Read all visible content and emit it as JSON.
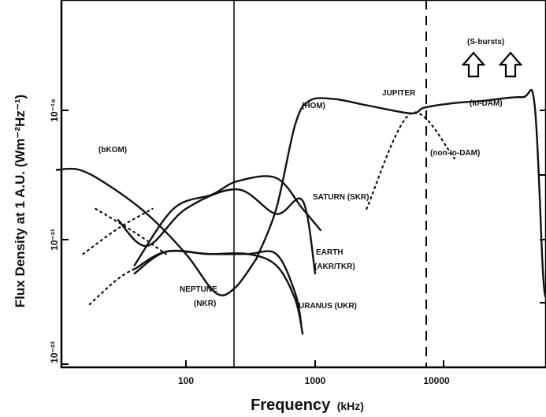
{
  "chart_data": {
    "type": "line",
    "xlabel": "Frequency (kHz)",
    "ylabel": "Flux Density at 1 A.U. (Wm⁻²Hz⁻¹)",
    "x_scale": "log",
    "y_scale": "log",
    "xlim": [
      10,
      70000
    ],
    "ylim": [
      1e-23,
      1e-18
    ],
    "x_ticks": [
      {
        "value": 100,
        "label": "100"
      },
      {
        "value": 1000,
        "label": "1000"
      },
      {
        "value": 10000,
        "label": "10000"
      }
    ],
    "y_ticks": [
      {
        "value": 1e-19,
        "label": "10⁻¹⁹"
      },
      {
        "value": 1e-21,
        "label": "10⁻²¹"
      },
      {
        "value": 1e-23,
        "label": "10⁻²³"
      }
    ],
    "grid": false,
    "legend": "none",
    "series": [
      {
        "name": "(bKOM)",
        "style": "solid",
        "points": [
          [
            10,
            1.2e-20
          ],
          [
            15,
            1.2e-20
          ],
          [
            25,
            7e-21
          ],
          [
            50,
            2.5e-21
          ],
          [
            100,
            6e-22
          ],
          [
            170,
            1.5e-22
          ],
          [
            240,
            1.8e-22
          ],
          [
            350,
            5e-22
          ]
        ]
      },
      {
        "name": "(HOM)",
        "style": "solid",
        "points": [
          [
            350,
            5e-22
          ],
          [
            500,
            3e-21
          ],
          [
            700,
            6e-20
          ],
          [
            900,
            1.4e-19
          ],
          [
            1400,
            1.5e-19
          ],
          [
            2500,
            1.2e-19
          ],
          [
            5500,
            9e-20
          ],
          [
            7000,
            1.1e-19
          ],
          [
            12000,
            1.3e-19
          ],
          [
            20000,
            1.4e-19
          ]
        ]
      },
      {
        "name": "(Io-DAM)",
        "style": "solid",
        "points": [
          [
            20000,
            1.4e-19
          ],
          [
            40000,
            1.6e-19
          ],
          [
            50000,
            1.2e-19
          ],
          [
            58000,
            3e-22
          ],
          [
            62000,
            1.2e-22
          ]
        ]
      },
      {
        "name": "(S-bursts)",
        "style": "arrow",
        "points": []
      },
      {
        "name": "(non-Io-DAM)",
        "style": "dotted",
        "points": [
          [
            2500,
            3e-21
          ],
          [
            5500,
            9e-20
          ],
          [
            12000,
            1.8e-20
          ]
        ]
      },
      {
        "name": "SATURN (SKR)",
        "style": "solid",
        "points": [
          [
            40,
            4e-22
          ],
          [
            80,
            3e-21
          ],
          [
            160,
            5e-21
          ],
          [
            250,
            8e-21
          ],
          [
            500,
            9e-21
          ],
          [
            800,
            3e-21
          ],
          [
            1100,
            1.4e-21
          ]
        ]
      },
      {
        "name": "EARTH (AKR/TKR)",
        "style": "solid",
        "points": [
          [
            30,
            2e-21
          ],
          [
            50,
            8e-22
          ],
          [
            100,
            3e-21
          ],
          [
            250,
            6e-21
          ],
          [
            500,
            2.5e-21
          ],
          [
            800,
            4e-21
          ],
          [
            1000,
            3e-22
          ]
        ]
      },
      {
        "name": "NEPTUNE (NKR)",
        "style": "solid",
        "points": [
          [
            40,
            3.5e-22
          ],
          [
            70,
            6.5e-22
          ],
          [
            150,
            6e-22
          ],
          [
            300,
            6e-22
          ],
          [
            500,
            6e-22
          ],
          [
            700,
            1.5e-22
          ],
          [
            780,
            5e-23
          ]
        ]
      },
      {
        "name": "URANUS (UKR)",
        "style": "solid",
        "points": [
          [
            40,
            3e-22
          ],
          [
            70,
            6.5e-22
          ],
          [
            150,
            6e-22
          ],
          [
            300,
            6e-22
          ],
          [
            500,
            4e-22
          ],
          [
            700,
            1.2e-22
          ],
          [
            800,
            3.5e-23
          ]
        ]
      }
    ],
    "annotations": [
      "(bKOM)",
      "(HOM)",
      "JUPITER",
      "(Io-DAM)",
      "(non-Io-DAM)",
      "(S-bursts)",
      "SATURN (SKR)",
      "EARTH (AKR/TKR)",
      "NEPTUNE (NKR)",
      "URANUS (UKR)"
    ]
  },
  "labels": {
    "xlabel_main": "Frequency",
    "xlabel_unit": "(kHz)",
    "ylabel": "Flux Density at 1 A.U. (Wm⁻²Hz⁻¹)",
    "bkom": "(bKOM)",
    "hom": "(HOM)",
    "jupiter": "JUPITER",
    "io_dam": "(Io-DAM)",
    "non_io_dam": "(non-Io-DAM)",
    "s_bursts": "(S-bursts)",
    "saturn": "SATURN (SKR)",
    "earth_1": "EARTH",
    "earth_2": "(AKR/TKR)",
    "neptune_1": "NEPTUNE",
    "neptune_2": "(NKR)",
    "uranus": "URANUS (UKR)",
    "xtick_100": "100",
    "xtick_1000": "1000",
    "xtick_10000": "10000",
    "ytick_m19": "10⁻¹⁹",
    "ytick_m21": "10⁻²¹",
    "ytick_m23": "10⁻²³"
  }
}
